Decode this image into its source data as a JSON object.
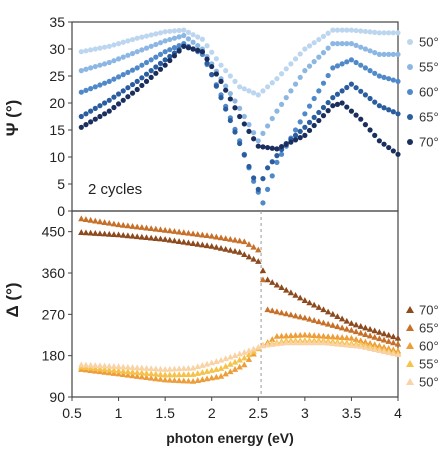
{
  "chart_data": [
    {
      "type": "scatter",
      "xlabel": "photon energy (eV)",
      "ylabel": "Ψ (°)",
      "xlim": [
        0.5,
        4
      ],
      "ylim": [
        0,
        35
      ],
      "yticks": [
        "0",
        "5",
        "10",
        "15",
        "20",
        "25",
        "30",
        "35"
      ],
      "xticks": [
        "0.5",
        "1",
        "1.5",
        "2",
        "2.5",
        "3",
        "3.5",
        "4"
      ],
      "annotation": "2 cycles",
      "legend_position": "right",
      "marker": "circle",
      "series": [
        {
          "name": "50°",
          "color": "#bcd6ef",
          "points": [
            [
              0.6,
              29.5
            ],
            [
              0.9,
              30.5
            ],
            [
              1.2,
              32
            ],
            [
              1.5,
              33.2
            ],
            [
              1.7,
              33.5
            ],
            [
              1.9,
              31.8
            ],
            [
              2.1,
              27
            ],
            [
              2.3,
              23
            ],
            [
              2.5,
              21.5
            ],
            [
              2.7,
              24.5
            ],
            [
              3.0,
              30
            ],
            [
              3.3,
              33.5
            ],
            [
              3.5,
              33.5
            ],
            [
              3.8,
              33
            ],
            [
              4.0,
              33
            ]
          ]
        },
        {
          "name": "55°",
          "color": "#8cb7e3",
          "points": [
            [
              0.6,
              26
            ],
            [
              0.9,
              27.5
            ],
            [
              1.2,
              29.5
            ],
            [
              1.5,
              31.5
            ],
            [
              1.7,
              32.5
            ],
            [
              1.9,
              30
            ],
            [
              2.1,
              24.5
            ],
            [
              2.3,
              19
            ],
            [
              2.5,
              13
            ],
            [
              2.7,
              18.5
            ],
            [
              3.0,
              26
            ],
            [
              3.3,
              31
            ],
            [
              3.5,
              31
            ],
            [
              3.8,
              29
            ],
            [
              4.0,
              29
            ]
          ]
        },
        {
          "name": "60°",
          "color": "#4f89c9",
          "points": [
            [
              0.6,
              22
            ],
            [
              0.9,
              24
            ],
            [
              1.2,
              26.5
            ],
            [
              1.5,
              29.5
            ],
            [
              1.7,
              31
            ],
            [
              1.9,
              29
            ],
            [
              2.1,
              21.5
            ],
            [
              2.3,
              13
            ],
            [
              2.45,
              5.5
            ],
            [
              2.55,
              1.5
            ],
            [
              2.7,
              9
            ],
            [
              3.0,
              18
            ],
            [
              3.3,
              26.5
            ],
            [
              3.5,
              28
            ],
            [
              3.8,
              25
            ],
            [
              4.0,
              24
            ]
          ]
        },
        {
          "name": "65°",
          "color": "#2a5d9f",
          "points": [
            [
              0.6,
              17.5
            ],
            [
              0.9,
              20.5
            ],
            [
              1.2,
              24
            ],
            [
              1.5,
              28
            ],
            [
              1.7,
              30.5
            ],
            [
              1.9,
              29.5
            ],
            [
              2.1,
              21
            ],
            [
              2.3,
              12.5
            ],
            [
              2.5,
              4
            ],
            [
              2.6,
              8
            ],
            [
              2.8,
              12.5
            ],
            [
              3.0,
              15.5
            ],
            [
              3.3,
              21
            ],
            [
              3.5,
              23.5
            ],
            [
              3.8,
              19.5
            ],
            [
              4.0,
              18
            ]
          ]
        },
        {
          "name": "70°",
          "color": "#1b2f5e",
          "points": [
            [
              0.6,
              15.5
            ],
            [
              0.9,
              18.5
            ],
            [
              1.2,
              22.5
            ],
            [
              1.5,
              27
            ],
            [
              1.7,
              30.5
            ],
            [
              1.9,
              29.5
            ],
            [
              2.1,
              24
            ],
            [
              2.3,
              17.5
            ],
            [
              2.5,
              12
            ],
            [
              2.7,
              11.5
            ],
            [
              3.0,
              14
            ],
            [
              3.3,
              19.5
            ],
            [
              3.4,
              20
            ],
            [
              3.6,
              17
            ],
            [
              3.8,
              13
            ],
            [
              4.0,
              10.5
            ]
          ]
        }
      ]
    },
    {
      "type": "scatter",
      "xlabel": "photon energy (eV)",
      "ylabel": "Δ (°)",
      "xlim": [
        0.5,
        4
      ],
      "ylim": [
        90,
        495
      ],
      "yticks": [
        "90",
        "180",
        "270",
        "360",
        "450"
      ],
      "xticks": [
        "0.5",
        "1",
        "1.5",
        "2",
        "2.5",
        "3",
        "3.5",
        "4"
      ],
      "legend_position": "right",
      "marker": "triangle",
      "vertical_line_x": 2.53,
      "series": [
        {
          "name": "70°",
          "color": "#8c4a1e",
          "points": [
            [
              0.6,
              448
            ],
            [
              1.0,
              443
            ],
            [
              1.5,
              433
            ],
            [
              2.0,
              418
            ],
            [
              2.3,
              405
            ],
            [
              2.5,
              385
            ],
            [
              2.6,
              345
            ],
            [
              3.0,
              300
            ],
            [
              3.5,
              250
            ],
            [
              4.0,
              218
            ]
          ]
        },
        {
          "name": "65°",
          "color": "#c7702a",
          "points": [
            [
              0.6,
              478
            ],
            [
              1.0,
              465
            ],
            [
              1.5,
              453
            ],
            [
              2.0,
              440
            ],
            [
              2.35,
              428
            ],
            [
              2.5,
              410
            ],
            [
              2.6,
              280
            ],
            [
              3.0,
              262
            ],
            [
              3.5,
              235
            ],
            [
              4.0,
              205
            ]
          ]
        },
        {
          "name": "60°",
          "color": "#ed9d3a",
          "points": [
            [
              0.6,
              150
            ],
            [
              1.0,
              140
            ],
            [
              1.5,
              127
            ],
            [
              1.8,
              124
            ],
            [
              2.1,
              135
            ],
            [
              2.35,
              160
            ],
            [
              2.5,
              195
            ],
            [
              2.7,
              222
            ],
            [
              3.0,
              225
            ],
            [
              3.5,
              218
            ],
            [
              4.0,
              190
            ]
          ]
        },
        {
          "name": "55°",
          "color": "#f6c24a",
          "points": [
            [
              0.6,
              155
            ],
            [
              1.0,
              147
            ],
            [
              1.5,
              138
            ],
            [
              1.8,
              139
            ],
            [
              2.1,
              152
            ],
            [
              2.35,
              175
            ],
            [
              2.55,
              203
            ],
            [
              2.8,
              213
            ],
            [
              3.2,
              213
            ],
            [
              3.6,
              205
            ],
            [
              4.0,
              185
            ]
          ]
        },
        {
          "name": "50°",
          "color": "#f9d3a6",
          "points": [
            [
              0.6,
              160
            ],
            [
              1.0,
              156
            ],
            [
              1.5,
              150
            ],
            [
              1.8,
              153
            ],
            [
              2.1,
              170
            ],
            [
              2.35,
              187
            ],
            [
              2.55,
              202
            ],
            [
              2.8,
              208
            ],
            [
              3.2,
              208
            ],
            [
              3.6,
              200
            ],
            [
              4.0,
              182
            ]
          ]
        }
      ]
    }
  ]
}
